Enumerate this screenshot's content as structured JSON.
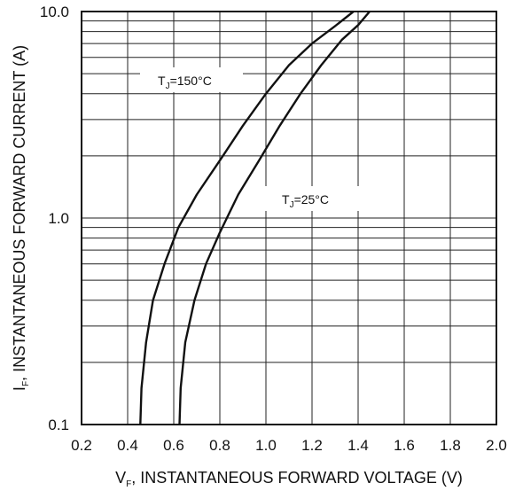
{
  "chart_data": {
    "type": "line",
    "title": "",
    "xlabel_main": "V",
    "xlabel_sub": "F",
    "xlabel_rest": ", INSTANTANEOUS FORWARD VOLTAGE (V)",
    "ylabel_main": "I",
    "ylabel_sub": "F",
    "ylabel_rest": ", INSTANTANEOUS FORWARD CURRENT (A)",
    "xlim": [
      0.2,
      2.0
    ],
    "ylim": [
      0.1,
      10.0
    ],
    "yscale": "log",
    "grid": true,
    "x_ticks": [
      "0.2",
      "0.4",
      "0.6",
      "0.8",
      "1.0",
      "1.2",
      "1.4",
      "1.6",
      "1.8",
      "2.0"
    ],
    "y_ticks": [
      "0.1",
      "1.0",
      "10.0"
    ],
    "series": [
      {
        "label_main": "T",
        "label_sub": "J",
        "label_rest": "=150°C",
        "points": [
          [
            0.455,
            0.1
          ],
          [
            0.46,
            0.15
          ],
          [
            0.48,
            0.25
          ],
          [
            0.51,
            0.4
          ],
          [
            0.56,
            0.6
          ],
          [
            0.62,
            0.9
          ],
          [
            0.7,
            1.3
          ],
          [
            0.8,
            1.9
          ],
          [
            0.9,
            2.8
          ],
          [
            1.0,
            4.0
          ],
          [
            1.1,
            5.5
          ],
          [
            1.2,
            7.0
          ],
          [
            1.3,
            8.5
          ],
          [
            1.38,
            10.0
          ]
        ]
      },
      {
        "label_main": "T",
        "label_sub": "J",
        "label_rest": "=25°C",
        "points": [
          [
            0.625,
            0.1
          ],
          [
            0.63,
            0.15
          ],
          [
            0.65,
            0.25
          ],
          [
            0.69,
            0.4
          ],
          [
            0.74,
            0.6
          ],
          [
            0.8,
            0.85
          ],
          [
            0.88,
            1.3
          ],
          [
            0.97,
            1.9
          ],
          [
            1.06,
            2.8
          ],
          [
            1.15,
            4.0
          ],
          [
            1.24,
            5.5
          ],
          [
            1.33,
            7.3
          ],
          [
            1.4,
            8.6
          ],
          [
            1.45,
            10.0
          ]
        ]
      }
    ]
  }
}
